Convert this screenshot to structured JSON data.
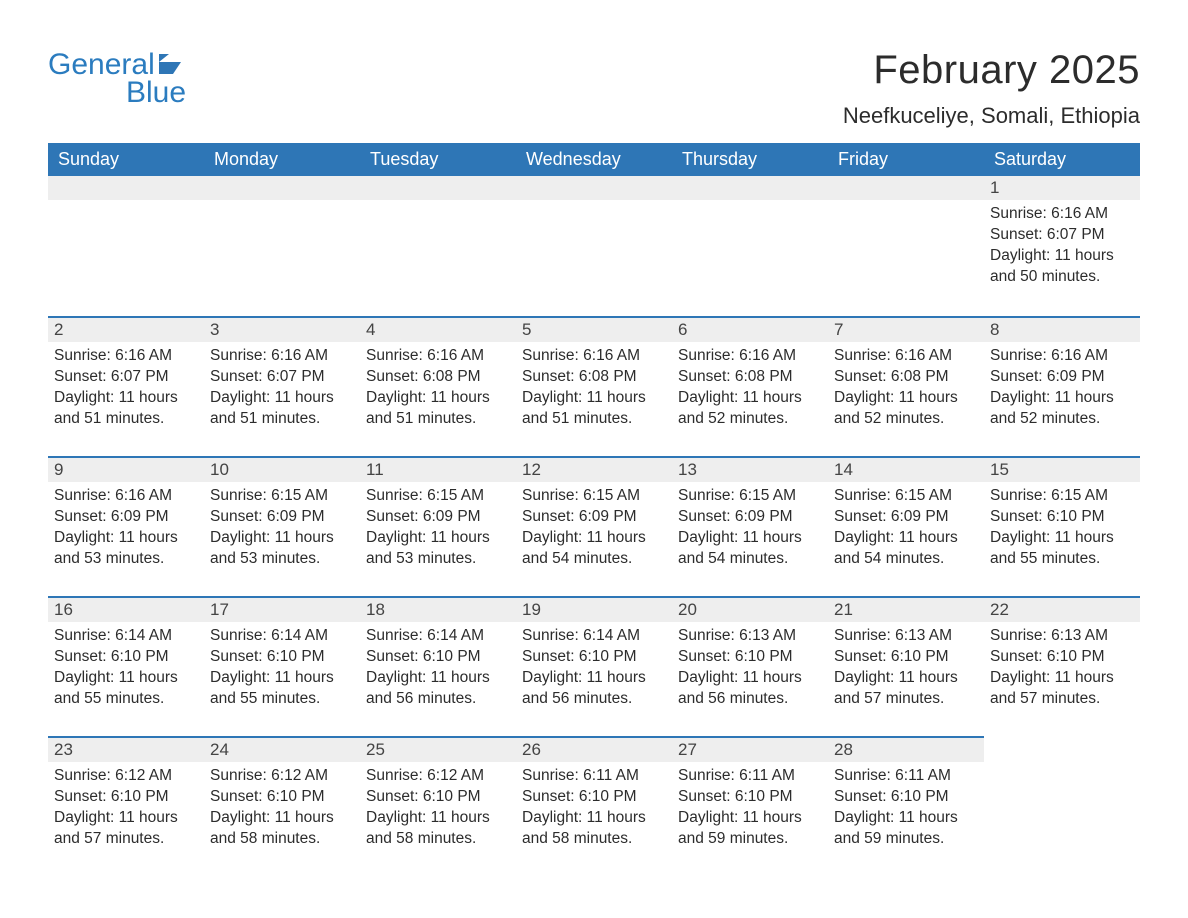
{
  "logo": {
    "text1": "General",
    "text2": "Blue",
    "flag_color": "#2e76b6"
  },
  "header": {
    "month_title": "February 2025",
    "location": "Neefkuceliye, Somali, Ethiopia"
  },
  "colors": {
    "header_bg": "#2e76b6",
    "header_text": "#ffffff",
    "daynum_bg": "#eeeeee",
    "row_border": "#2e76b6",
    "body_text": "#2c2c2c",
    "logo_text": "#2b7cbf",
    "page_bg": "#ffffff"
  },
  "fonts": {
    "family": "Arial",
    "month_title_size_pt": 30,
    "location_size_pt": 17,
    "dayheader_size_pt": 14,
    "body_size_pt": 12
  },
  "day_headers": [
    "Sunday",
    "Monday",
    "Tuesday",
    "Wednesday",
    "Thursday",
    "Friday",
    "Saturday"
  ],
  "weeks": [
    [
      null,
      null,
      null,
      null,
      null,
      null,
      {
        "n": "1",
        "sunrise": "6:16 AM",
        "sunset": "6:07 PM",
        "daylight": "11 hours and 50 minutes."
      }
    ],
    [
      {
        "n": "2",
        "sunrise": "6:16 AM",
        "sunset": "6:07 PM",
        "daylight": "11 hours and 51 minutes."
      },
      {
        "n": "3",
        "sunrise": "6:16 AM",
        "sunset": "6:07 PM",
        "daylight": "11 hours and 51 minutes."
      },
      {
        "n": "4",
        "sunrise": "6:16 AM",
        "sunset": "6:08 PM",
        "daylight": "11 hours and 51 minutes."
      },
      {
        "n": "5",
        "sunrise": "6:16 AM",
        "sunset": "6:08 PM",
        "daylight": "11 hours and 51 minutes."
      },
      {
        "n": "6",
        "sunrise": "6:16 AM",
        "sunset": "6:08 PM",
        "daylight": "11 hours and 52 minutes."
      },
      {
        "n": "7",
        "sunrise": "6:16 AM",
        "sunset": "6:08 PM",
        "daylight": "11 hours and 52 minutes."
      },
      {
        "n": "8",
        "sunrise": "6:16 AM",
        "sunset": "6:09 PM",
        "daylight": "11 hours and 52 minutes."
      }
    ],
    [
      {
        "n": "9",
        "sunrise": "6:16 AM",
        "sunset": "6:09 PM",
        "daylight": "11 hours and 53 minutes."
      },
      {
        "n": "10",
        "sunrise": "6:15 AM",
        "sunset": "6:09 PM",
        "daylight": "11 hours and 53 minutes."
      },
      {
        "n": "11",
        "sunrise": "6:15 AM",
        "sunset": "6:09 PM",
        "daylight": "11 hours and 53 minutes."
      },
      {
        "n": "12",
        "sunrise": "6:15 AM",
        "sunset": "6:09 PM",
        "daylight": "11 hours and 54 minutes."
      },
      {
        "n": "13",
        "sunrise": "6:15 AM",
        "sunset": "6:09 PM",
        "daylight": "11 hours and 54 minutes."
      },
      {
        "n": "14",
        "sunrise": "6:15 AM",
        "sunset": "6:09 PM",
        "daylight": "11 hours and 54 minutes."
      },
      {
        "n": "15",
        "sunrise": "6:15 AM",
        "sunset": "6:10 PM",
        "daylight": "11 hours and 55 minutes."
      }
    ],
    [
      {
        "n": "16",
        "sunrise": "6:14 AM",
        "sunset": "6:10 PM",
        "daylight": "11 hours and 55 minutes."
      },
      {
        "n": "17",
        "sunrise": "6:14 AM",
        "sunset": "6:10 PM",
        "daylight": "11 hours and 55 minutes."
      },
      {
        "n": "18",
        "sunrise": "6:14 AM",
        "sunset": "6:10 PM",
        "daylight": "11 hours and 56 minutes."
      },
      {
        "n": "19",
        "sunrise": "6:14 AM",
        "sunset": "6:10 PM",
        "daylight": "11 hours and 56 minutes."
      },
      {
        "n": "20",
        "sunrise": "6:13 AM",
        "sunset": "6:10 PM",
        "daylight": "11 hours and 56 minutes."
      },
      {
        "n": "21",
        "sunrise": "6:13 AM",
        "sunset": "6:10 PM",
        "daylight": "11 hours and 57 minutes."
      },
      {
        "n": "22",
        "sunrise": "6:13 AM",
        "sunset": "6:10 PM",
        "daylight": "11 hours and 57 minutes."
      }
    ],
    [
      {
        "n": "23",
        "sunrise": "6:12 AM",
        "sunset": "6:10 PM",
        "daylight": "11 hours and 57 minutes."
      },
      {
        "n": "24",
        "sunrise": "6:12 AM",
        "sunset": "6:10 PM",
        "daylight": "11 hours and 58 minutes."
      },
      {
        "n": "25",
        "sunrise": "6:12 AM",
        "sunset": "6:10 PM",
        "daylight": "11 hours and 58 minutes."
      },
      {
        "n": "26",
        "sunrise": "6:11 AM",
        "sunset": "6:10 PM",
        "daylight": "11 hours and 58 minutes."
      },
      {
        "n": "27",
        "sunrise": "6:11 AM",
        "sunset": "6:10 PM",
        "daylight": "11 hours and 59 minutes."
      },
      {
        "n": "28",
        "sunrise": "6:11 AM",
        "sunset": "6:10 PM",
        "daylight": "11 hours and 59 minutes."
      },
      null
    ]
  ],
  "labels": {
    "sunrise": "Sunrise:",
    "sunset": "Sunset:",
    "daylight": "Daylight:"
  }
}
